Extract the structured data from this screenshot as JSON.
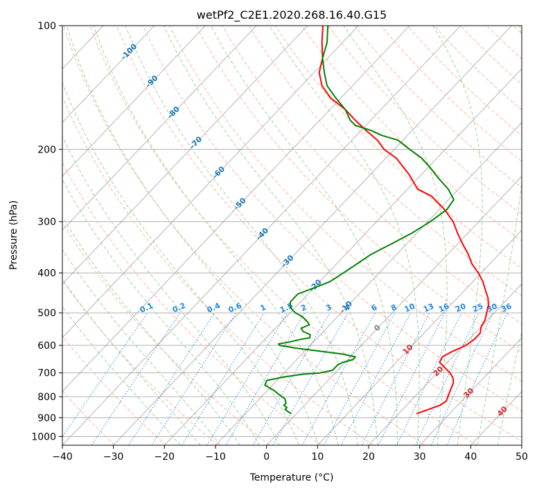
{
  "chart_data": {
    "type": "line",
    "subtype": "skew-t log-p diagram",
    "title": "wetPf2_C2E1.2020.268.16.40.G15",
    "xlabel": "Temperature (°C)",
    "ylabel": "Pressure (hPa)",
    "xlim": [
      -40,
      50
    ],
    "ylim": [
      1050,
      100
    ],
    "y_scale": "log",
    "x_ticks": [
      -40,
      -30,
      -20,
      -10,
      0,
      10,
      20,
      30,
      40,
      50
    ],
    "y_ticks": [
      100,
      200,
      300,
      400,
      500,
      600,
      700,
      800,
      900,
      1000
    ],
    "grid": true,
    "colors": {
      "temperature": "#ff0000",
      "dewpoint": "#008000",
      "isotherm": "#888888",
      "dry_adiabat": "#ffb59a",
      "moist_adiabat": "#9ed29e",
      "mixing_ratio": "#1e88e5",
      "skew_label_blue": "#1f77b4",
      "skew_label_red": "#d62728",
      "skew_label_gray": "#7f7f7f"
    },
    "skew_isotherm_labels": [
      {
        "text": "-100",
        "t": -100,
        "p": 116,
        "color": "skew_label_blue"
      },
      {
        "text": "-90",
        "t": -90,
        "p": 137,
        "color": "skew_label_blue"
      },
      {
        "text": "-80",
        "t": -80,
        "p": 163,
        "color": "skew_label_blue"
      },
      {
        "text": "-70",
        "t": -70,
        "p": 193,
        "color": "skew_label_blue"
      },
      {
        "text": "-60",
        "t": -60,
        "p": 228,
        "color": "skew_label_blue"
      },
      {
        "text": "-50",
        "t": -50,
        "p": 272,
        "color": "skew_label_blue"
      },
      {
        "text": "-40",
        "t": -40,
        "p": 322,
        "color": "skew_label_blue"
      },
      {
        "text": "-30",
        "t": -30,
        "p": 375,
        "color": "skew_label_blue"
      },
      {
        "text": "-20",
        "t": -20,
        "p": 430,
        "color": "skew_label_blue"
      },
      {
        "text": "-10",
        "t": -10,
        "p": 485,
        "color": "skew_label_blue"
      },
      {
        "text": "0",
        "t": 0,
        "p": 545,
        "color": "skew_label_gray"
      },
      {
        "text": "10",
        "t": 10,
        "p": 615,
        "color": "skew_label_red"
      },
      {
        "text": "20",
        "t": 20,
        "p": 695,
        "color": "skew_label_red"
      },
      {
        "text": "30",
        "t": 30,
        "p": 785,
        "color": "skew_label_red"
      },
      {
        "text": "40",
        "t": 40,
        "p": 870,
        "color": "skew_label_red"
      }
    ],
    "mixing_ratio_lines": [
      {
        "label": "0.1",
        "value": 0.1
      },
      {
        "label": "0.2",
        "value": 0.2
      },
      {
        "label": "0.4",
        "value": 0.4
      },
      {
        "label": "0.6",
        "value": 0.6
      },
      {
        "label": "1",
        "value": 1
      },
      {
        "label": "1.5",
        "value": 1.5
      },
      {
        "label": "2",
        "value": 2
      },
      {
        "label": "3",
        "value": 3
      },
      {
        "label": "4",
        "value": 4
      },
      {
        "label": "6",
        "value": 6
      },
      {
        "label": "8",
        "value": 8
      },
      {
        "label": "10",
        "value": 10
      },
      {
        "label": "13",
        "value": 13
      },
      {
        "label": "16",
        "value": 16
      },
      {
        "label": "20",
        "value": 20
      },
      {
        "label": "25",
        "value": 25
      },
      {
        "label": "30",
        "value": 30
      },
      {
        "label": "36",
        "value": 36
      }
    ],
    "series": [
      {
        "key": "temperature",
        "points": [
          [
            880,
            23.5
          ],
          [
            860,
            25
          ],
          [
            840,
            26.5
          ],
          [
            820,
            27
          ],
          [
            800,
            26.5
          ],
          [
            780,
            26
          ],
          [
            760,
            25.5
          ],
          [
            740,
            25
          ],
          [
            720,
            24
          ],
          [
            700,
            22.5
          ],
          [
            680,
            20.5
          ],
          [
            660,
            18.5
          ],
          [
            640,
            18
          ],
          [
            620,
            19
          ],
          [
            600,
            20.5
          ],
          [
            580,
            21
          ],
          [
            560,
            21
          ],
          [
            540,
            20
          ],
          [
            520,
            19.5
          ],
          [
            500,
            18.5
          ],
          [
            480,
            17.5
          ],
          [
            460,
            16
          ],
          [
            440,
            14
          ],
          [
            420,
            12
          ],
          [
            400,
            9.5
          ],
          [
            380,
            6.5
          ],
          [
            360,
            4
          ],
          [
            340,
            1
          ],
          [
            320,
            -2
          ],
          [
            300,
            -5
          ],
          [
            280,
            -9
          ],
          [
            260,
            -14
          ],
          [
            250,
            -18
          ],
          [
            230,
            -22.5
          ],
          [
            210,
            -28
          ],
          [
            200,
            -32
          ],
          [
            190,
            -35
          ],
          [
            180,
            -39
          ],
          [
            170,
            -43
          ],
          [
            160,
            -47
          ],
          [
            150,
            -52
          ],
          [
            140,
            -56
          ],
          [
            130,
            -59
          ],
          [
            120,
            -61
          ],
          [
            110,
            -64
          ],
          [
            100,
            -67
          ]
        ]
      },
      {
        "key": "dewpoint",
        "points": [
          [
            880,
            -1
          ],
          [
            870,
            -2
          ],
          [
            860,
            -3
          ],
          [
            850,
            -3
          ],
          [
            840,
            -4
          ],
          [
            830,
            -4
          ],
          [
            810,
            -5
          ],
          [
            790,
            -7
          ],
          [
            770,
            -9
          ],
          [
            750,
            -11.5
          ],
          [
            730,
            -12
          ],
          [
            715,
            -9
          ],
          [
            705,
            -6
          ],
          [
            700,
            -3
          ],
          [
            690,
            -1
          ],
          [
            680,
            -1
          ],
          [
            670,
            -1
          ],
          [
            660,
            -0.5
          ],
          [
            650,
            1
          ],
          [
            640,
            1
          ],
          [
            630,
            -2
          ],
          [
            620,
            -7
          ],
          [
            610,
            -12
          ],
          [
            600,
            -16
          ],
          [
            595,
            -16.5
          ],
          [
            590,
            -15
          ],
          [
            580,
            -13
          ],
          [
            575,
            -11.5
          ],
          [
            565,
            -12
          ],
          [
            555,
            -14
          ],
          [
            545,
            -15
          ],
          [
            535,
            -14
          ],
          [
            525,
            -15
          ],
          [
            510,
            -17
          ],
          [
            500,
            -19
          ],
          [
            485,
            -21
          ],
          [
            470,
            -22
          ],
          [
            450,
            -22
          ],
          [
            435,
            -20
          ],
          [
            420,
            -18
          ],
          [
            400,
            -17
          ],
          [
            380,
            -16
          ],
          [
            360,
            -15
          ],
          [
            340,
            -13
          ],
          [
            320,
            -11
          ],
          [
            300,
            -9.5
          ],
          [
            280,
            -8.5
          ],
          [
            265,
            -9
          ],
          [
            250,
            -12
          ],
          [
            235,
            -16
          ],
          [
            220,
            -20
          ],
          [
            210,
            -23
          ],
          [
            200,
            -27
          ],
          [
            190,
            -31
          ],
          [
            185,
            -35
          ],
          [
            180,
            -38
          ],
          [
            175,
            -42
          ],
          [
            170,
            -44
          ],
          [
            160,
            -47
          ],
          [
            150,
            -51
          ],
          [
            140,
            -55
          ],
          [
            130,
            -58
          ],
          [
            120,
            -61
          ],
          [
            110,
            -63
          ],
          [
            100,
            -66
          ]
        ]
      }
    ]
  }
}
